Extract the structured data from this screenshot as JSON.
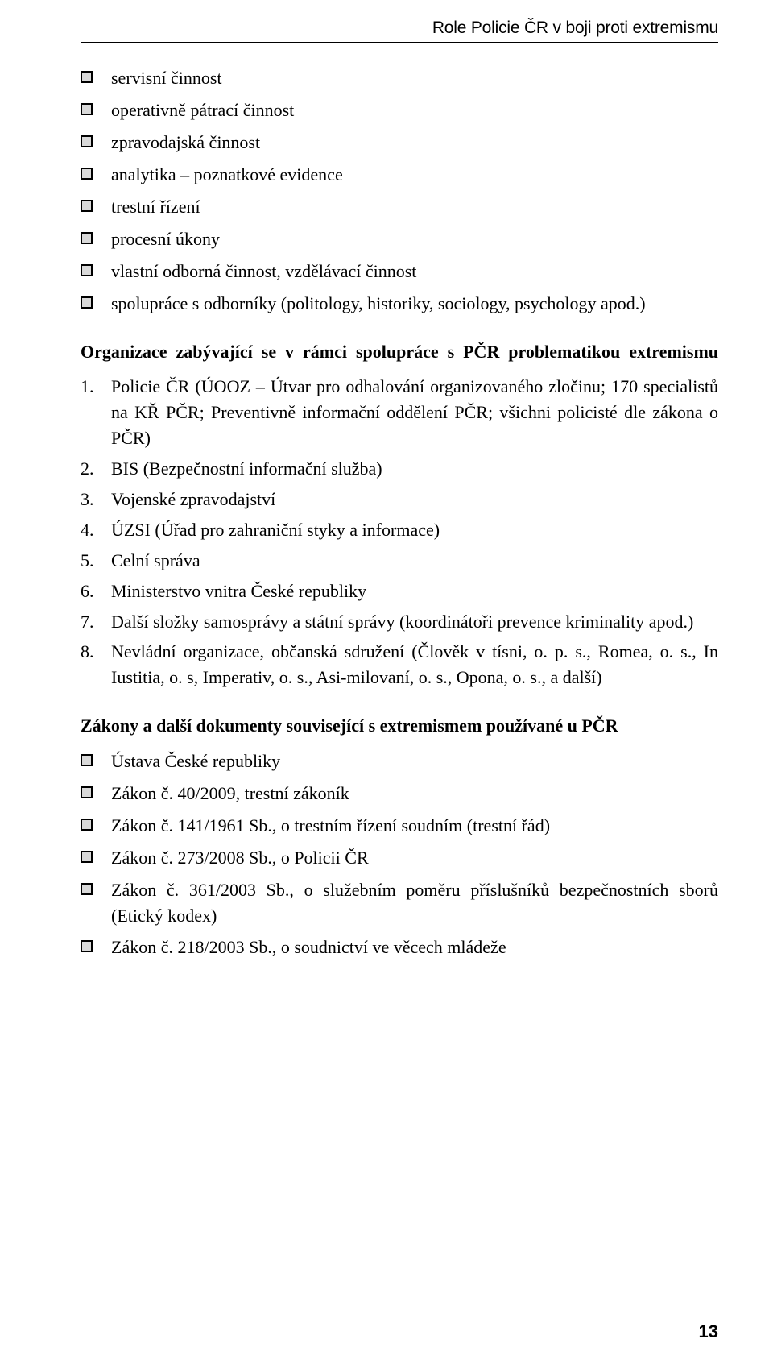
{
  "running_head": "Role Policie ČR v boji proti extremismu",
  "bullets_top": [
    "servisní činnost",
    "operativně pátrací činnost",
    "zpravodajská činnost",
    "analytika – poznatkové evidence",
    "trestní řízení",
    "procesní úkony",
    "vlastní odborná činnost, vzdělávací činnost",
    "spolupráce s odborníky (politology, historiky, sociology, psychology apod.)"
  ],
  "heading1": "Organizace zabývající se v rámci spolupráce s PČR problematikou extremismu",
  "numbered": [
    "Policie ČR (ÚOOZ – Útvar pro odhalování organizovaného zločinu; 170 specialistů na KŘ PČR; Preventivně informační oddělení PČR; všichni policisté dle zákona o PČR)",
    "BIS (Bezpečnostní informační služba)",
    "Vojenské zpravodajství",
    "ÚZSI (Úřad pro zahraniční styky a informace)",
    "Celní správa",
    "Ministerstvo vnitra České republiky",
    "Další složky samosprávy a státní správy (koordinátoři prevence kriminality apod.)",
    "Nevládní organizace, občanská sdružení (Člověk v tísni, o. p. s., Romea, o. s., In Iustitia, o. s, Imperativ, o. s., Asi-milovaní, o. s., Opona, o. s., a další)"
  ],
  "heading2": "Zákony a další dokumenty související s extremismem používané u PČR",
  "bullets_laws": [
    "Ústava České republiky",
    "Zákon č. 40/2009, trestní zákoník",
    "Zákon č. 141/1961 Sb., o trestním řízení soudním (trestní řád)",
    "Zákon č. 273/2008 Sb., o Policii ČR",
    "Zákon č. 361/2003 Sb., o služebním poměru příslušníků bezpečnostních sborů (Etický kodex)",
    "Zákon č. 218/2003 Sb., o soudnictví ve věcech mládeže"
  ],
  "page_number": "13"
}
